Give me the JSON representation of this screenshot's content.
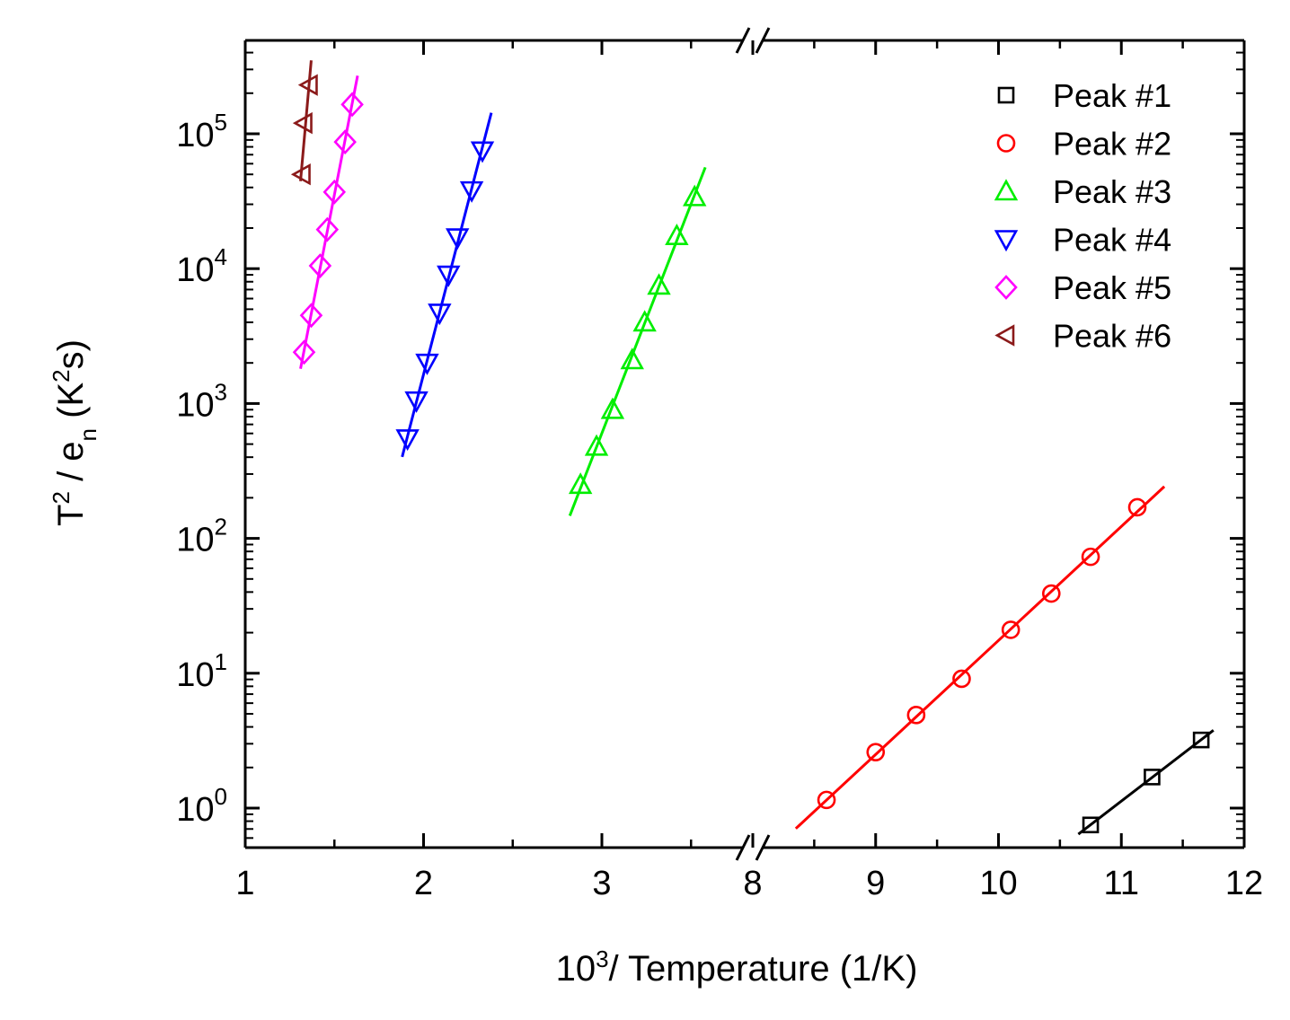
{
  "chart_data": {
    "type": "scatter",
    "title": "",
    "xlabel": {
      "base": "10",
      "sup": "3",
      "rest": "/ Temperature (1/K)"
    },
    "ylabel": {
      "t": "T",
      "t_sup": "2",
      "mid": " / e",
      "sub": "n",
      "open": " (K",
      "k_sup": "2",
      "close": "s)"
    },
    "y_scale": "log",
    "ylim": [
      0.5,
      500000
    ],
    "x_segments": [
      {
        "range": [
          1,
          4
        ],
        "ticks": [
          1,
          2,
          3
        ],
        "tick_labels": [
          "1",
          "2",
          "3"
        ]
      },
      {
        "range": [
          8,
          12
        ],
        "ticks": [
          8,
          9,
          10,
          11,
          12
        ],
        "tick_labels": [
          "8",
          "9",
          "10",
          "11",
          "12"
        ]
      }
    ],
    "axis_break": "//",
    "y_ticks": [
      {
        "value": 1,
        "base": "10",
        "exp": "0"
      },
      {
        "value": 10,
        "base": "10",
        "exp": "1"
      },
      {
        "value": 100,
        "base": "10",
        "exp": "2"
      },
      {
        "value": 1000,
        "base": "10",
        "exp": "3"
      },
      {
        "value": 10000,
        "base": "10",
        "exp": "4"
      },
      {
        "value": 100000,
        "base": "10",
        "exp": "5"
      }
    ],
    "legend_position": "top-right",
    "series": [
      {
        "name": "Peak #1",
        "color": "#000000",
        "marker": "square",
        "x": [
          10.75,
          11.25,
          11.65
        ],
        "y": [
          0.75,
          1.7,
          3.2
        ],
        "fit_x": [
          10.65,
          11.75
        ]
      },
      {
        "name": "Peak #2",
        "color": "#ff0000",
        "marker": "circle",
        "x": [
          8.6,
          9.0,
          9.33,
          9.7,
          10.1,
          10.43,
          10.75,
          11.13
        ],
        "y": [
          1.15,
          2.6,
          4.9,
          9.1,
          21,
          39,
          73,
          170
        ],
        "fit_x": [
          8.35,
          11.35
        ]
      },
      {
        "name": "Peak #3",
        "color": "#00ee00",
        "marker": "triangle-up",
        "x": [
          2.88,
          2.97,
          3.06,
          3.17,
          3.24,
          3.32,
          3.42,
          3.52
        ],
        "y": [
          250,
          480,
          900,
          2100,
          4000,
          7500,
          17500,
          34000
        ],
        "fit_x": [
          2.82,
          3.58
        ]
      },
      {
        "name": "Peak #4",
        "color": "#0000ff",
        "marker": "triangle-down",
        "x": [
          1.91,
          1.96,
          2.02,
          2.09,
          2.14,
          2.19,
          2.27,
          2.33
        ],
        "y": [
          550,
          1050,
          2000,
          4700,
          9000,
          17000,
          38000,
          75000
        ],
        "fit_x": [
          1.88,
          2.38
        ]
      },
      {
        "name": "Peak #5",
        "color": "#ff00ff",
        "marker": "diamond",
        "x": [
          1.33,
          1.37,
          1.42,
          1.46,
          1.5,
          1.56,
          1.6
        ],
        "y": [
          2400,
          4500,
          10500,
          19500,
          37000,
          87000,
          165000
        ],
        "fit_x": [
          1.31,
          1.63
        ]
      },
      {
        "name": "Peak #6",
        "color": "#8b1a1a",
        "marker": "triangle-left",
        "x": [
          1.32,
          1.33,
          1.36
        ],
        "y": [
          50000,
          120000,
          230000
        ],
        "fit_x": [
          1.31,
          1.37
        ]
      }
    ]
  }
}
